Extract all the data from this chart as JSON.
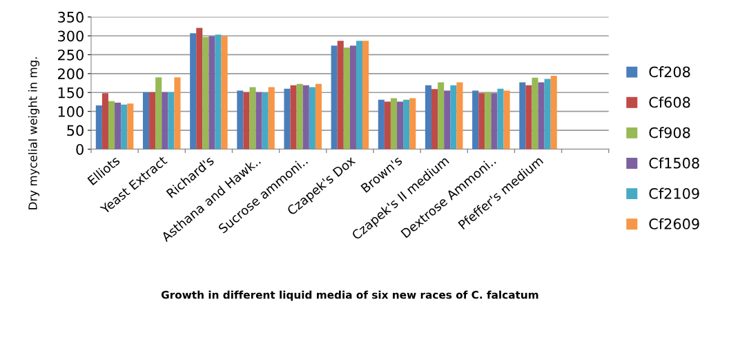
{
  "chart_data": {
    "type": "bar",
    "xlabel": "Growth in different liquid media of six new races of C. falcatum",
    "ylabel": "Dry mycelial weight in mg.",
    "categories": [
      "Elliots",
      "Yeast Extract",
      "Richard's",
      "Asthana and Hawk..",
      "Sucrose ammoni..",
      "Czapek's Dox",
      "Brown's",
      "Czapek's II medium",
      "Dextrose Ammoni..",
      "Pfeffer's medium",
      null
    ],
    "series": [
      {
        "name": "Cf208",
        "color": "#4a7ebb",
        "values": [
          116,
          151,
          307,
          155,
          160,
          274,
          131,
          169,
          155,
          177,
          null
        ]
      },
      {
        "name": "Cf608",
        "color": "#be4b48",
        "values": [
          148,
          151,
          321,
          151,
          169,
          287,
          126,
          159,
          148,
          169,
          null
        ]
      },
      {
        "name": "Cf908",
        "color": "#98b954",
        "values": [
          127,
          190,
          297,
          164,
          173,
          269,
          135,
          177,
          151,
          189,
          null
        ]
      },
      {
        "name": "Cf1508",
        "color": "#7d60a0",
        "values": [
          123,
          151,
          299,
          151,
          169,
          274,
          126,
          155,
          148,
          177,
          null
        ]
      },
      {
        "name": "Cf2109",
        "color": "#46aac5",
        "values": [
          118,
          151,
          303,
          149,
          164,
          287,
          131,
          169,
          160,
          186,
          null
        ]
      },
      {
        "name": "Cf2609",
        "color": "#f79646",
        "values": [
          121,
          190,
          299,
          164,
          173,
          287,
          135,
          177,
          155,
          194,
          null
        ]
      }
    ],
    "ylim": [
      0,
      350
    ],
    "yticks": [
      0,
      50,
      100,
      150,
      200,
      250,
      300,
      350
    ],
    "grid": "y",
    "legend": "right"
  }
}
